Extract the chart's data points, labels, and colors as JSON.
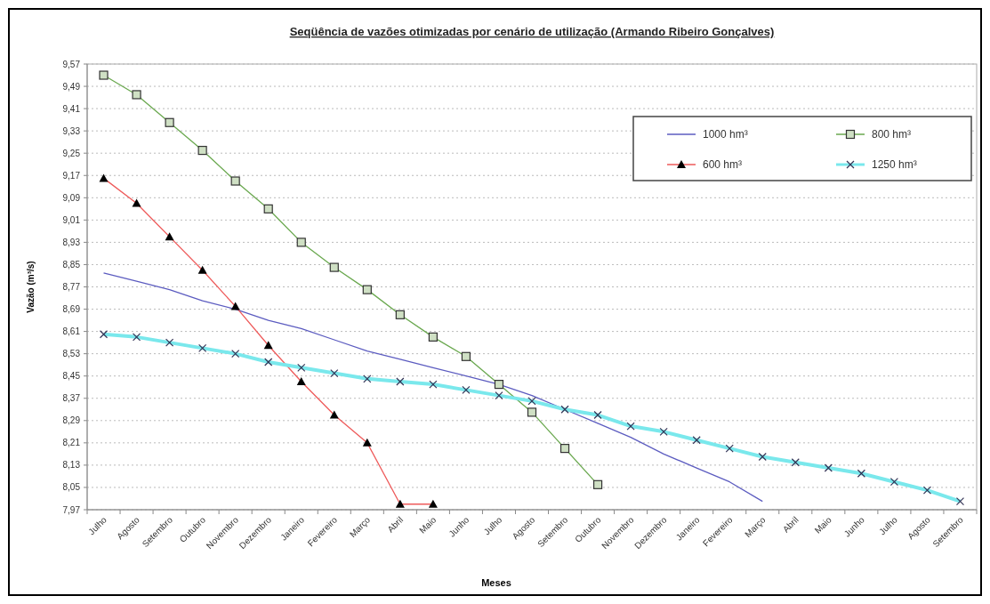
{
  "chart_data": {
    "type": "line",
    "title": "Seqüência de vazões otimizadas por cenário de utilização (Armando Ribeiro Gonçalves)",
    "xlabel": "Meses",
    "ylabel": "Vazão (m³/s)",
    "categories": [
      "Julho",
      "Agosto",
      "Setembro",
      "Outubro",
      "Novembro",
      "Dezembro",
      "Janeiro",
      "Fevereiro",
      "Março",
      "Abril",
      "Maio",
      "Junho",
      "Julho",
      "Agosto",
      "Setembro",
      "Outubro",
      "Novembro",
      "Dezembro",
      "Janeiro",
      "Fevereiro",
      "Março",
      "Abril",
      "Maio",
      "Junho",
      "Julho",
      "Agosto",
      "Setembro"
    ],
    "ylim": [
      7.97,
      9.57
    ],
    "yticks": [
      {
        "value": 7.97,
        "label": "7,97"
      },
      {
        "value": 8.05,
        "label": "8,05"
      },
      {
        "value": 8.13,
        "label": "8,13"
      },
      {
        "value": 8.21,
        "label": "8,21"
      },
      {
        "value": 8.29,
        "label": "8,29"
      },
      {
        "value": 8.37,
        "label": "8,37"
      },
      {
        "value": 8.45,
        "label": "8,45"
      },
      {
        "value": 8.53,
        "label": "8,53"
      },
      {
        "value": 8.61,
        "label": "8,61"
      },
      {
        "value": 8.69,
        "label": "8,69"
      },
      {
        "value": 8.77,
        "label": "8,77"
      },
      {
        "value": 8.85,
        "label": "8,85"
      },
      {
        "value": 8.93,
        "label": "8,93"
      },
      {
        "value": 9.01,
        "label": "9,01"
      },
      {
        "value": 9.09,
        "label": "9,09"
      },
      {
        "value": 9.17,
        "label": "9,17"
      },
      {
        "value": 9.25,
        "label": "9,25"
      },
      {
        "value": 9.33,
        "label": "9,33"
      },
      {
        "value": 9.41,
        "label": "9,41"
      },
      {
        "value": 9.49,
        "label": "9,49"
      },
      {
        "value": 9.57,
        "label": "9,57"
      }
    ],
    "grid": "y",
    "legend": "top right",
    "series": [
      {
        "name": "1000 hm³",
        "color": "#5c5cc0",
        "marker": "none",
        "values": [
          8.82,
          8.79,
          8.76,
          8.72,
          8.69,
          8.65,
          8.62,
          8.58,
          8.54,
          8.51,
          8.48,
          8.45,
          8.42,
          8.38,
          8.33,
          8.28,
          8.23,
          8.17,
          8.12,
          8.07,
          8.0,
          null,
          null,
          null,
          null,
          null,
          null
        ]
      },
      {
        "name": "800 hm³",
        "color": "#6aa84f",
        "marker": "square",
        "values": [
          9.53,
          9.46,
          9.36,
          9.26,
          9.15,
          9.05,
          8.93,
          8.84,
          8.76,
          8.67,
          8.59,
          8.52,
          8.42,
          8.32,
          8.19,
          8.06,
          null,
          null,
          null,
          null,
          null,
          null,
          null,
          null,
          null,
          null,
          null
        ]
      },
      {
        "name": "600 hm³",
        "color": "#ee5a5a",
        "marker": "triangle",
        "values": [
          9.16,
          9.07,
          8.95,
          8.83,
          8.7,
          8.56,
          8.43,
          8.31,
          8.21,
          7.99,
          7.99,
          null,
          null,
          null,
          null,
          null,
          null,
          null,
          null,
          null,
          null,
          null,
          null,
          null,
          null,
          null,
          null
        ]
      },
      {
        "name": "1250 hm³",
        "color": "#7ae8ec",
        "marker": "cross",
        "values": [
          8.6,
          8.59,
          8.57,
          8.55,
          8.53,
          8.5,
          8.48,
          8.46,
          8.44,
          8.43,
          8.42,
          8.4,
          8.38,
          8.36,
          8.33,
          8.31,
          8.27,
          8.25,
          8.22,
          8.19,
          8.16,
          8.14,
          8.12,
          8.1,
          8.07,
          8.04,
          8.0
        ]
      }
    ]
  }
}
